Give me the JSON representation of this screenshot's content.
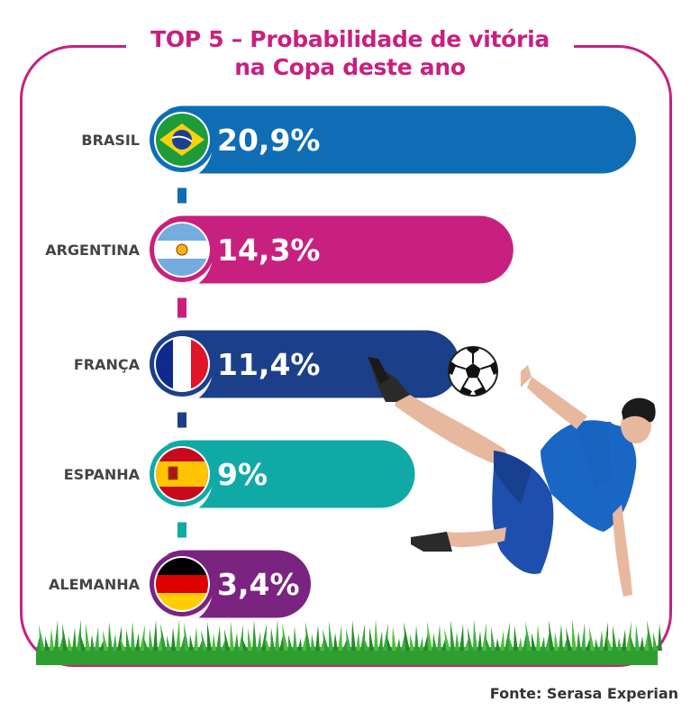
{
  "chart_data": {
    "type": "bar",
    "orientation": "horizontal",
    "title_lines": [
      "TOP 5 – Probabilidade de vitória",
      "na Copa deste ano"
    ],
    "categories": [
      "BRASIL",
      "ARGENTINA",
      "FRANÇA",
      "ESPANHA",
      "ALEMANHA"
    ],
    "values": [
      20.9,
      14.3,
      11.4,
      9,
      3.4
    ],
    "value_labels": [
      "20,9%",
      "14,3%",
      "11,4%",
      "9%",
      "3,4%"
    ],
    "unit": "%",
    "colors": [
      "#0e6db5",
      "#c8207f",
      "#1c3f8a",
      "#10aaa6",
      "#7b2381"
    ],
    "flags": [
      "brazil-flag-icon",
      "argentina-flag-icon",
      "france-flag-icon",
      "spain-flag-icon",
      "germany-flag-icon"
    ]
  },
  "source": "Fonte: Serasa Experian",
  "theme": {
    "accent": "#c8207f",
    "grass": "#2f9e30"
  },
  "illustration": {
    "player": "soccer-player-bicycle-kick",
    "ball": "soccer-ball-icon"
  }
}
